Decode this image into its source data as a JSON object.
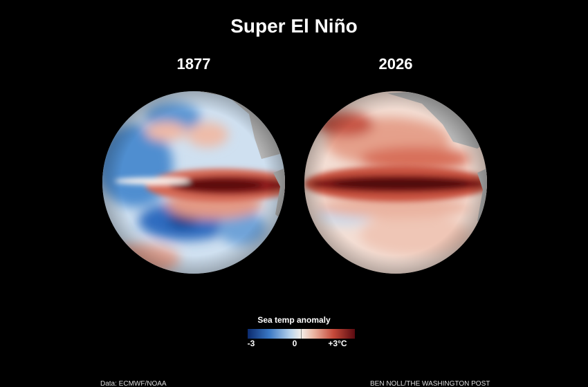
{
  "header": {
    "title": "Super El Niño"
  },
  "panels": [
    {
      "label": "1877"
    },
    {
      "label": "2026"
    }
  ],
  "legend": {
    "title": "Sea temp anomaly",
    "ticks": [
      "-3",
      "0",
      "+3°C"
    ]
  },
  "footer": {
    "source": "Data: ECMWF/NOAA",
    "credit": "BEN NOLL/THE WASHINGTON POST"
  }
}
